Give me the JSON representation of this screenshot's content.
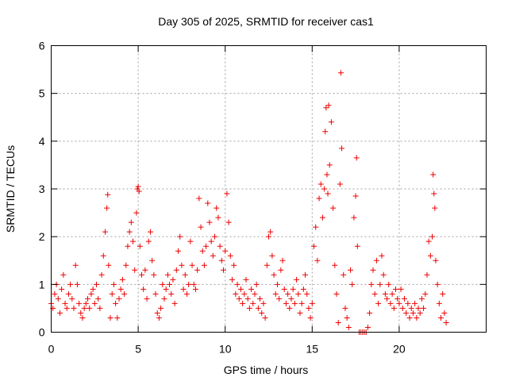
{
  "chart_data": {
    "type": "scatter",
    "title": "Day 305 of 2025, SRMTID for receiver cas1",
    "xlabel": "GPS time / hours",
    "ylabel": "SRMTID / TECUs",
    "xlim": [
      0,
      25
    ],
    "ylim": [
      0,
      6
    ],
    "x_ticks": [
      0,
      5,
      10,
      15,
      20
    ],
    "y_ticks": [
      0,
      1,
      2,
      3,
      4,
      5,
      6
    ],
    "grid": true,
    "marker": "+",
    "color": "#ee0000",
    "series": [
      {
        "name": "SRMTID",
        "points": [
          [
            0.0,
            0.6
          ],
          [
            0.1,
            0.5
          ],
          [
            0.2,
            0.8
          ],
          [
            0.3,
            1.0
          ],
          [
            0.4,
            0.7
          ],
          [
            0.5,
            0.4
          ],
          [
            0.6,
            0.9
          ],
          [
            0.7,
            1.2
          ],
          [
            0.8,
            0.6
          ],
          [
            0.9,
            0.5
          ],
          [
            1.0,
            0.8
          ],
          [
            1.1,
            1.0
          ],
          [
            1.2,
            0.7
          ],
          [
            1.3,
            0.5
          ],
          [
            1.4,
            1.4
          ],
          [
            1.5,
            1.0
          ],
          [
            1.6,
            0.6
          ],
          [
            1.7,
            0.4
          ],
          [
            1.8,
            0.3
          ],
          [
            1.9,
            0.5
          ],
          [
            2.0,
            0.6
          ],
          [
            2.1,
            0.7
          ],
          [
            2.2,
            0.5
          ],
          [
            2.3,
            0.8
          ],
          [
            2.4,
            0.9
          ],
          [
            2.5,
            0.6
          ],
          [
            2.6,
            1.0
          ],
          [
            2.7,
            0.7
          ],
          [
            2.8,
            0.5
          ],
          [
            2.9,
            1.2
          ],
          [
            3.0,
            1.6
          ],
          [
            3.1,
            2.1
          ],
          [
            3.2,
            2.6
          ],
          [
            3.25,
            2.88
          ],
          [
            3.3,
            1.4
          ],
          [
            3.4,
            0.3
          ],
          [
            3.5,
            0.8
          ],
          [
            3.6,
            1.0
          ],
          [
            3.7,
            0.6
          ],
          [
            3.8,
            0.3
          ],
          [
            3.9,
            0.7
          ],
          [
            4.0,
            0.9
          ],
          [
            4.1,
            1.1
          ],
          [
            4.2,
            0.8
          ],
          [
            4.3,
            1.4
          ],
          [
            4.4,
            1.8
          ],
          [
            4.5,
            2.1
          ],
          [
            4.6,
            2.3
          ],
          [
            4.7,
            1.9
          ],
          [
            4.8,
            1.3
          ],
          [
            4.9,
            2.5
          ],
          [
            4.95,
            3.0
          ],
          [
            5.0,
            3.05
          ],
          [
            5.05,
            2.95
          ],
          [
            5.1,
            1.8
          ],
          [
            5.2,
            1.2
          ],
          [
            5.3,
            0.9
          ],
          [
            5.4,
            1.3
          ],
          [
            5.5,
            0.7
          ],
          [
            5.6,
            1.9
          ],
          [
            5.7,
            2.1
          ],
          [
            5.8,
            1.5
          ],
          [
            5.9,
            1.2
          ],
          [
            6.0,
            0.8
          ],
          [
            6.1,
            0.4
          ],
          [
            6.2,
            0.3
          ],
          [
            6.3,
            0.5
          ],
          [
            6.4,
            1.0
          ],
          [
            6.5,
            0.7
          ],
          [
            6.6,
            0.9
          ],
          [
            6.7,
            1.2
          ],
          [
            6.8,
            1.0
          ],
          [
            6.9,
            0.8
          ],
          [
            7.0,
            1.1
          ],
          [
            7.1,
            0.6
          ],
          [
            7.2,
            1.3
          ],
          [
            7.3,
            1.7
          ],
          [
            7.4,
            2.0
          ],
          [
            7.5,
            1.4
          ],
          [
            7.6,
            0.9
          ],
          [
            7.7,
            1.2
          ],
          [
            7.8,
            0.8
          ],
          [
            7.9,
            1.0
          ],
          [
            8.0,
            1.9
          ],
          [
            8.1,
            1.4
          ],
          [
            8.2,
            1.0
          ],
          [
            8.3,
            0.9
          ],
          [
            8.4,
            1.3
          ],
          [
            8.5,
            2.8
          ],
          [
            8.6,
            2.2
          ],
          [
            8.7,
            1.7
          ],
          [
            8.8,
            1.4
          ],
          [
            8.9,
            1.8
          ],
          [
            9.0,
            2.7
          ],
          [
            9.1,
            2.3
          ],
          [
            9.2,
            1.9
          ],
          [
            9.3,
            1.6
          ],
          [
            9.4,
            2.0
          ],
          [
            9.5,
            2.6
          ],
          [
            9.6,
            2.4
          ],
          [
            9.7,
            1.8
          ],
          [
            9.8,
            1.5
          ],
          [
            9.9,
            1.3
          ],
          [
            10.0,
            1.7
          ],
          [
            10.1,
            2.9
          ],
          [
            10.2,
            2.3
          ],
          [
            10.3,
            1.6
          ],
          [
            10.4,
            1.1
          ],
          [
            10.5,
            1.4
          ],
          [
            10.6,
            0.8
          ],
          [
            10.7,
            1.0
          ],
          [
            10.8,
            0.7
          ],
          [
            10.9,
            0.9
          ],
          [
            11.0,
            0.6
          ],
          [
            11.1,
            0.8
          ],
          [
            11.2,
            1.1
          ],
          [
            11.3,
            0.7
          ],
          [
            11.4,
            0.5
          ],
          [
            11.5,
            0.9
          ],
          [
            11.6,
            0.6
          ],
          [
            11.7,
            0.8
          ],
          [
            11.8,
            1.0
          ],
          [
            11.9,
            0.5
          ],
          [
            12.0,
            0.7
          ],
          [
            12.1,
            0.4
          ],
          [
            12.2,
            0.6
          ],
          [
            12.3,
            0.3
          ],
          [
            12.4,
            1.4
          ],
          [
            12.5,
            2.0
          ],
          [
            12.6,
            2.1
          ],
          [
            12.7,
            1.6
          ],
          [
            12.8,
            1.2
          ],
          [
            12.9,
            0.8
          ],
          [
            13.0,
            1.0
          ],
          [
            13.1,
            0.7
          ],
          [
            13.2,
            1.3
          ],
          [
            13.3,
            1.5
          ],
          [
            13.4,
            0.9
          ],
          [
            13.5,
            0.6
          ],
          [
            13.6,
            0.8
          ],
          [
            13.7,
            0.5
          ],
          [
            13.8,
            0.7
          ],
          [
            13.9,
            0.9
          ],
          [
            14.0,
            0.6
          ],
          [
            14.1,
            1.1
          ],
          [
            14.2,
            0.8
          ],
          [
            14.3,
            0.4
          ],
          [
            14.4,
            0.6
          ],
          [
            14.5,
            0.9
          ],
          [
            14.6,
            1.2
          ],
          [
            14.7,
            0.8
          ],
          [
            14.8,
            0.5
          ],
          [
            14.9,
            0.3
          ],
          [
            15.0,
            0.6
          ],
          [
            15.1,
            1.8
          ],
          [
            15.2,
            2.2
          ],
          [
            15.3,
            1.5
          ],
          [
            15.4,
            2.8
          ],
          [
            15.5,
            3.1
          ],
          [
            15.6,
            2.4
          ],
          [
            15.7,
            3.0
          ],
          [
            15.75,
            4.2
          ],
          [
            15.8,
            4.7
          ],
          [
            15.85,
            3.3
          ],
          [
            15.9,
            2.9
          ],
          [
            15.95,
            4.75
          ],
          [
            16.0,
            3.5
          ],
          [
            16.1,
            4.4
          ],
          [
            16.2,
            2.6
          ],
          [
            16.3,
            1.4
          ],
          [
            16.4,
            0.8
          ],
          [
            16.5,
            0.2
          ],
          [
            16.6,
            3.1
          ],
          [
            16.65,
            5.43
          ],
          [
            16.7,
            3.85
          ],
          [
            16.8,
            1.2
          ],
          [
            16.9,
            0.5
          ],
          [
            17.0,
            0.3
          ],
          [
            17.1,
            0.1
          ],
          [
            17.2,
            1.3
          ],
          [
            17.3,
            1.0
          ],
          [
            17.4,
            2.4
          ],
          [
            17.5,
            2.85
          ],
          [
            17.55,
            3.65
          ],
          [
            17.6,
            1.8
          ],
          [
            17.7,
            0.0
          ],
          [
            17.8,
            0.0
          ],
          [
            17.9,
            0.0
          ],
          [
            18.0,
            0.0
          ],
          [
            18.1,
            0.0
          ],
          [
            18.2,
            0.1
          ],
          [
            18.3,
            0.4
          ],
          [
            18.4,
            1.0
          ],
          [
            18.5,
            1.3
          ],
          [
            18.6,
            0.8
          ],
          [
            18.7,
            1.5
          ],
          [
            18.8,
            0.6
          ],
          [
            18.9,
            1.0
          ],
          [
            19.0,
            1.6
          ],
          [
            19.1,
            1.2
          ],
          [
            19.2,
            0.8
          ],
          [
            19.3,
            0.7
          ],
          [
            19.4,
            1.0
          ],
          [
            19.5,
            0.6
          ],
          [
            19.6,
            0.8
          ],
          [
            19.7,
            0.5
          ],
          [
            19.8,
            0.9
          ],
          [
            19.9,
            0.7
          ],
          [
            20.0,
            0.6
          ],
          [
            20.1,
            0.9
          ],
          [
            20.2,
            0.5
          ],
          [
            20.3,
            0.7
          ],
          [
            20.4,
            0.4
          ],
          [
            20.5,
            0.6
          ],
          [
            20.6,
            0.3
          ],
          [
            20.7,
            0.5
          ],
          [
            20.8,
            0.4
          ],
          [
            20.9,
            0.6
          ],
          [
            21.0,
            0.3
          ],
          [
            21.1,
            0.5
          ],
          [
            21.2,
            0.4
          ],
          [
            21.3,
            0.7
          ],
          [
            21.4,
            0.5
          ],
          [
            21.5,
            0.8
          ],
          [
            21.6,
            1.2
          ],
          [
            21.7,
            1.9
          ],
          [
            21.8,
            1.6
          ],
          [
            21.9,
            2.0
          ],
          [
            21.95,
            3.3
          ],
          [
            22.0,
            2.9
          ],
          [
            22.05,
            2.6
          ],
          [
            22.1,
            1.5
          ],
          [
            22.2,
            1.0
          ],
          [
            22.3,
            0.6
          ],
          [
            22.4,
            0.3
          ],
          [
            22.5,
            0.8
          ],
          [
            22.6,
            0.4
          ],
          [
            22.7,
            0.2
          ]
        ]
      }
    ]
  }
}
